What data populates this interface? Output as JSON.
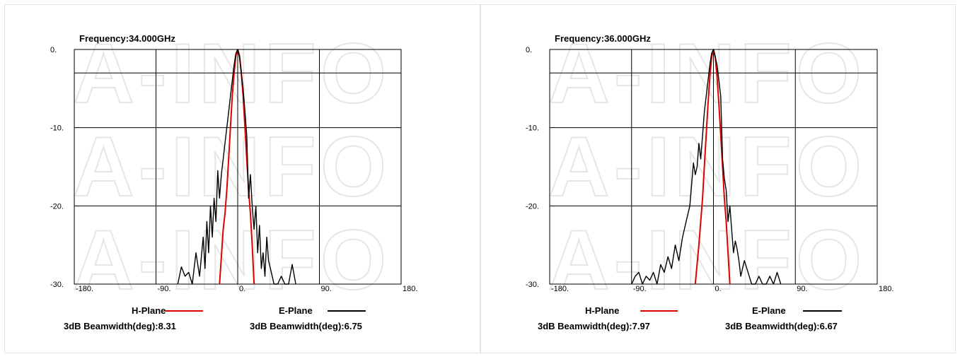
{
  "colors": {
    "h_plane": "#e00000",
    "e_plane": "#000000",
    "grid": "#000000"
  },
  "chart_data": [
    {
      "type": "line",
      "title": "Frequency:34.000GHz",
      "xlim": [
        -180,
        180
      ],
      "ylim": [
        -30,
        0
      ],
      "x_ticks": [
        "-180.",
        "-90.",
        "0.",
        "90.",
        "180."
      ],
      "y_ticks": [
        "0.",
        "-10.",
        "-20.",
        "-30."
      ],
      "grid": true,
      "legend": [
        {
          "name": "H-Plane",
          "beamwidth": "3dB Beamwidth(deg):8.31"
        },
        {
          "name": "E-Plane",
          "beamwidth": "3dB Beamwidth(deg):6.75"
        }
      ],
      "series": [
        {
          "name": "H-Plane",
          "x": [
            -20,
            -16,
            -14,
            -12,
            -10,
            -8,
            -6,
            -4,
            -2,
            0,
            2,
            4,
            6,
            8,
            10,
            12,
            14,
            16,
            18
          ],
          "y": [
            -30,
            -23,
            -21,
            -18,
            -14,
            -10,
            -6,
            -3,
            -0.8,
            0,
            -0.8,
            -3,
            -6,
            -10,
            -14,
            -18,
            -21,
            -25,
            -30
          ]
        },
        {
          "name": "E-Plane",
          "x": [
            -66,
            -62,
            -58,
            -54,
            -50,
            -46,
            -42,
            -38,
            -36,
            -34,
            -32,
            -30,
            -28,
            -26,
            -24,
            -22,
            -20,
            -18,
            -16,
            -14,
            -12,
            -10,
            -8,
            -6,
            -4,
            -2,
            0,
            2,
            4,
            6,
            8,
            10,
            12,
            14,
            16,
            18,
            20,
            22,
            24,
            26,
            28,
            30,
            32,
            34,
            36,
            38,
            40,
            44,
            48,
            52,
            56,
            60,
            64
          ],
          "y": [
            -30,
            -27.8,
            -29,
            -28.5,
            -30,
            -26,
            -29,
            -24,
            -28,
            -22,
            -26,
            -20,
            -24,
            -19,
            -22,
            -15.5,
            -19,
            -16,
            -14,
            -12,
            -10,
            -8,
            -6,
            -4,
            -2,
            -0.5,
            0,
            -1,
            -3,
            -5,
            -8,
            -11,
            -19,
            -16,
            -20,
            -23,
            -20,
            -26,
            -22.5,
            -28,
            -26,
            -29,
            -24,
            -27,
            -28,
            -29,
            -30,
            -30,
            -29,
            -30,
            -30,
            -27.5,
            -30
          ]
        }
      ]
    },
    {
      "type": "line",
      "title": "Frequency:36.000GHz",
      "xlim": [
        -180,
        180
      ],
      "ylim": [
        -30,
        0
      ],
      "x_ticks": [
        "-180.",
        "-90.",
        "0.",
        "90.",
        "180."
      ],
      "y_ticks": [
        "0.",
        "-10.",
        "-20.",
        "-30."
      ],
      "grid": true,
      "legend": [
        {
          "name": "H-Plane",
          "beamwidth": "3dB Beamwidth(deg):7.97"
        },
        {
          "name": "E-Plane",
          "beamwidth": "3dB Beamwidth(deg):6.67"
        }
      ],
      "series": [
        {
          "name": "H-Plane",
          "x": [
            -20,
            -16,
            -14,
            -12,
            -10,
            -8,
            -6,
            -4,
            -2,
            0,
            2,
            4,
            6,
            8,
            10,
            12,
            14,
            16,
            18
          ],
          "y": [
            -30,
            -25,
            -22,
            -19,
            -15,
            -11,
            -7,
            -3.5,
            -1,
            0,
            -1,
            -3.5,
            -7,
            -11,
            -15,
            -19,
            -22,
            -26,
            -30
          ]
        },
        {
          "name": "E-Plane",
          "x": [
            -90,
            -86,
            -82,
            -78,
            -74,
            -70,
            -66,
            -62,
            -58,
            -54,
            -50,
            -46,
            -42,
            -38,
            -34,
            -30,
            -26,
            -22,
            -20,
            -18,
            -16,
            -14,
            -12,
            -10,
            -8,
            -6,
            -4,
            -2,
            0,
            2,
            4,
            6,
            8,
            10,
            12,
            14,
            16,
            18,
            20,
            22,
            24,
            26,
            28,
            30,
            34,
            38,
            42,
            46,
            50,
            54,
            58,
            62,
            66,
            70,
            74
          ],
          "y": [
            -30,
            -29,
            -28.5,
            -30,
            -29,
            -29.5,
            -28.5,
            -30,
            -27.5,
            -28.5,
            -26.5,
            -28,
            -25,
            -27,
            -24,
            -22,
            -20,
            -14.5,
            -16,
            -15,
            -12,
            -14,
            -11,
            -8,
            -6,
            -4,
            -2,
            -0.5,
            0,
            -1,
            -2,
            -4,
            -6,
            -14,
            -16.5,
            -18,
            -22,
            -20,
            -23,
            -26,
            -24.5,
            -25.5,
            -27,
            -29,
            -27,
            -28.5,
            -30,
            -30,
            -29,
            -30,
            -30,
            -29,
            -30,
            -28.5,
            -30
          ]
        }
      ]
    }
  ]
}
